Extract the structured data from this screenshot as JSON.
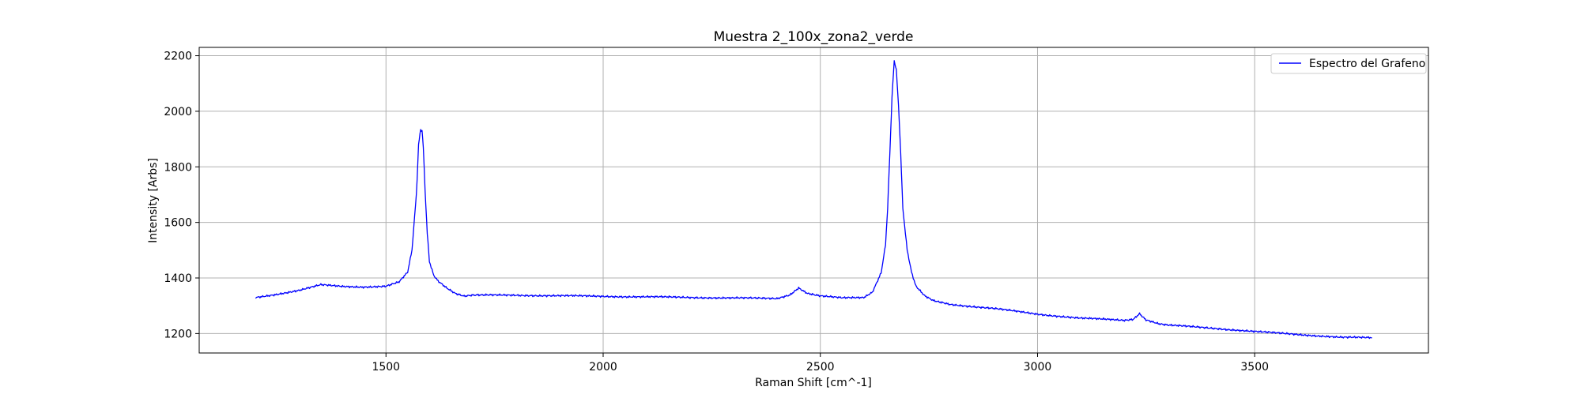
{
  "chart_data": {
    "type": "line",
    "title": "Muestra 2_100x_zona2_verde",
    "xlabel": "Raman Shift [cm^-1]",
    "ylabel": "Intensity [Arbs]",
    "xlim": [
      1070,
      3900
    ],
    "ylim": [
      1130,
      2230
    ],
    "xticks": [
      1500,
      2000,
      2500,
      3000,
      3500
    ],
    "xtick_labels": [
      "1500",
      "2000",
      "2500",
      "3000",
      "3500"
    ],
    "yticks": [
      1200,
      1400,
      1600,
      1800,
      2000,
      2200
    ],
    "ytick_labels": [
      "1200",
      "1400",
      "1600",
      "1800",
      "2000",
      "2200"
    ],
    "grid": true,
    "legend_position": "top-right",
    "series": [
      {
        "name": "Espectro del Grafeno",
        "color": "#0000ff",
        "x": [
          1200,
          1250,
          1300,
          1350,
          1400,
          1450,
          1500,
          1530,
          1550,
          1560,
          1570,
          1575,
          1580,
          1583,
          1586,
          1590,
          1595,
          1600,
          1610,
          1620,
          1640,
          1660,
          1680,
          1700,
          1800,
          1900,
          2000,
          2100,
          2200,
          2300,
          2400,
          2430,
          2450,
          2470,
          2500,
          2550,
          2600,
          2620,
          2640,
          2650,
          2655,
          2660,
          2665,
          2670,
          2675,
          2680,
          2685,
          2690,
          2700,
          2710,
          2720,
          2740,
          2760,
          2800,
          2900,
          3000,
          3100,
          3200,
          3220,
          3235,
          3250,
          3280,
          3300,
          3400,
          3500,
          3600,
          3700,
          3770
        ],
        "y": [
          1330,
          1342,
          1355,
          1375,
          1370,
          1368,
          1370,
          1385,
          1420,
          1500,
          1700,
          1880,
          1935,
          1930,
          1870,
          1720,
          1560,
          1460,
          1410,
          1390,
          1365,
          1345,
          1335,
          1338,
          1338,
          1336,
          1334,
          1332,
          1330,
          1328,
          1326,
          1340,
          1365,
          1345,
          1335,
          1328,
          1330,
          1350,
          1420,
          1520,
          1650,
          1850,
          2050,
          2180,
          2150,
          2020,
          1850,
          1650,
          1500,
          1420,
          1370,
          1335,
          1318,
          1305,
          1290,
          1270,
          1255,
          1248,
          1252,
          1270,
          1250,
          1235,
          1230,
          1220,
          1207,
          1197,
          1186,
          1185
        ]
      }
    ]
  }
}
